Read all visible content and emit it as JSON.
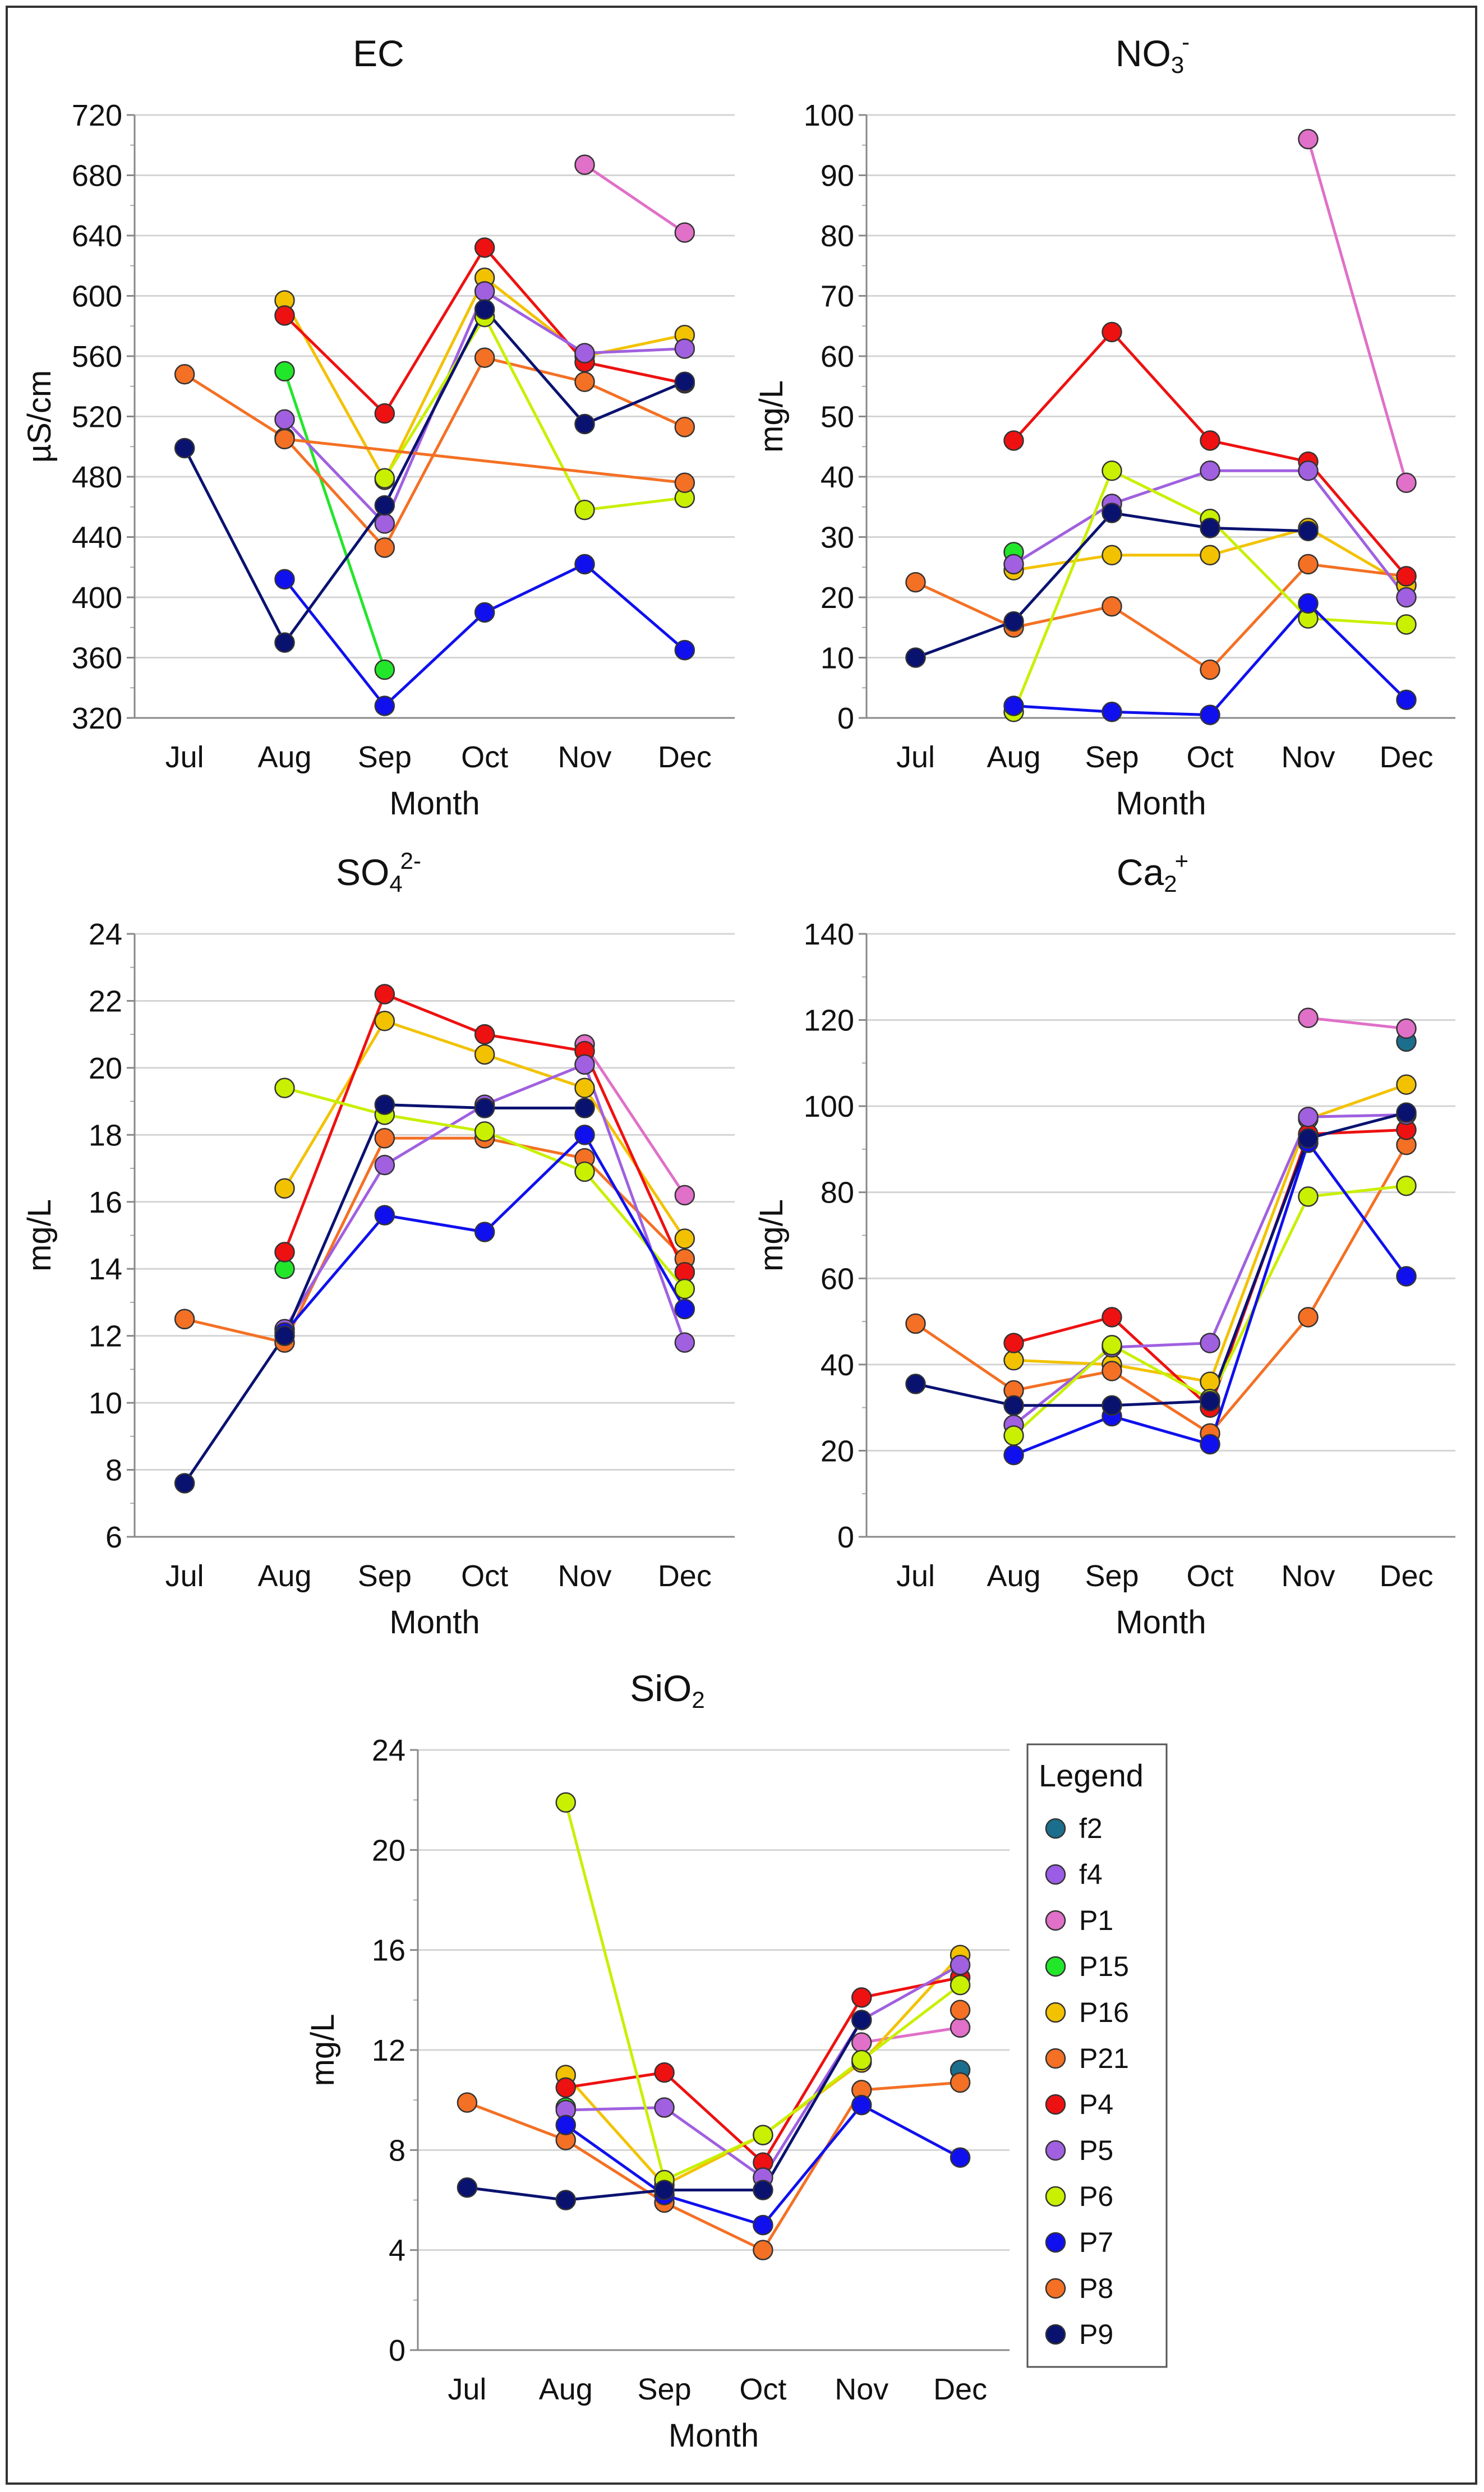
{
  "legend": {
    "title": "Legend",
    "items": [
      {
        "name": "f2",
        "color": "#1b6e8c"
      },
      {
        "name": "f4",
        "color": "#9b5de5"
      },
      {
        "name": "P1",
        "color": "#e070c8"
      },
      {
        "name": "P15",
        "color": "#22e62a"
      },
      {
        "name": "P16",
        "color": "#f2c200"
      },
      {
        "name": "P21",
        "color": "#f47024"
      },
      {
        "name": "P4",
        "color": "#ee1111"
      },
      {
        "name": "P5",
        "color": "#a060e0"
      },
      {
        "name": "P6",
        "color": "#c8f000"
      },
      {
        "name": "P7",
        "color": "#1010ee"
      },
      {
        "name": "P8",
        "color": "#f47024"
      },
      {
        "name": "P9",
        "color": "#0a1270"
      }
    ]
  },
  "line_colors": {
    "f2": "#1b6e8c",
    "f4": "#9b5de5",
    "P1": "#e070c8",
    "P15": "#22e62a",
    "P16": "#f2c200",
    "P21": "#f47024",
    "P4": "#ee1111",
    "P5": "#a060e0",
    "P6": "#c8f000",
    "P7": "#1010ee",
    "P8": "#f47024",
    "P9": "#0a1270"
  },
  "chart_data": [
    {
      "id": "ec",
      "type": "line",
      "title": "EC",
      "title_sup": "",
      "title_sub": "",
      "xlabel": "Month",
      "ylabel": "µS/cm",
      "categories": [
        "Jul",
        "Aug",
        "Sep",
        "Oct",
        "Nov",
        "Dec"
      ],
      "ylim": [
        320,
        720
      ],
      "yticks": [
        320,
        360,
        400,
        440,
        480,
        520,
        560,
        600,
        640,
        680,
        720
      ],
      "series": [
        {
          "name": "P1",
          "values": [
            null,
            null,
            null,
            null,
            687,
            642
          ]
        },
        {
          "name": "P15",
          "values": [
            null,
            550,
            352,
            null,
            null,
            null
          ]
        },
        {
          "name": "P16",
          "values": [
            null,
            597,
            478,
            612,
            560,
            574
          ]
        },
        {
          "name": "P21",
          "values": [
            548,
            506,
            433,
            559,
            543,
            513
          ]
        },
        {
          "name": "P4",
          "values": [
            null,
            587,
            522,
            632,
            556,
            542
          ]
        },
        {
          "name": "P5",
          "values": [
            null,
            518,
            449,
            603,
            562,
            565
          ]
        },
        {
          "name": "P6",
          "values": [
            null,
            null,
            479,
            586,
            458,
            466
          ]
        },
        {
          "name": "P7",
          "values": [
            null,
            412,
            328,
            390,
            422,
            365
          ]
        },
        {
          "name": "P8",
          "values": [
            null,
            505,
            null,
            null,
            null,
            476
          ]
        },
        {
          "name": "P9",
          "values": [
            499,
            370,
            461,
            591,
            515,
            543
          ]
        }
      ]
    },
    {
      "id": "no3",
      "type": "line",
      "title": "NO",
      "title_sup": "-",
      "title_sub": "3",
      "xlabel": "Month",
      "ylabel": "mg/L",
      "categories": [
        "Jul",
        "Aug",
        "Sep",
        "Oct",
        "Nov",
        "Dec"
      ],
      "ylim": [
        0,
        100
      ],
      "yticks": [
        0,
        10,
        20,
        30,
        40,
        50,
        60,
        70,
        80,
        90,
        100
      ],
      "series": [
        {
          "name": "f2",
          "values": [
            null,
            null,
            null,
            null,
            null,
            22
          ]
        },
        {
          "name": "P1",
          "values": [
            null,
            null,
            null,
            null,
            96,
            39
          ]
        },
        {
          "name": "P15",
          "values": [
            null,
            27.5,
            null,
            null,
            null,
            null
          ]
        },
        {
          "name": "P16",
          "values": [
            null,
            24.5,
            27,
            27,
            31.5,
            22
          ]
        },
        {
          "name": "P21",
          "values": [
            22.5,
            15,
            18.5,
            8,
            25.5,
            23.5
          ]
        },
        {
          "name": "P4",
          "values": [
            null,
            46,
            64,
            46,
            42.5,
            23.5
          ]
        },
        {
          "name": "P5",
          "values": [
            null,
            25.5,
            35.5,
            41,
            41,
            20
          ]
        },
        {
          "name": "P6",
          "values": [
            null,
            1,
            41,
            33,
            16.5,
            15.5
          ]
        },
        {
          "name": "P7",
          "values": [
            null,
            2,
            1,
            0.5,
            19,
            3
          ]
        },
        {
          "name": "P9",
          "values": [
            10,
            16,
            34,
            31.5,
            31,
            null
          ]
        }
      ]
    },
    {
      "id": "so4",
      "type": "line",
      "title": "SO",
      "title_sup": "2-",
      "title_sub": "4",
      "xlabel": "Month",
      "ylabel": "mg/L",
      "categories": [
        "Jul",
        "Aug",
        "Sep",
        "Oct",
        "Nov",
        "Dec"
      ],
      "ylim": [
        6,
        24
      ],
      "yticks": [
        6,
        8,
        10,
        12,
        14,
        16,
        18,
        20,
        22,
        24
      ],
      "series": [
        {
          "name": "P1",
          "values": [
            null,
            null,
            null,
            null,
            20.7,
            16.2
          ]
        },
        {
          "name": "P15",
          "values": [
            null,
            14,
            null,
            null,
            null,
            null
          ]
        },
        {
          "name": "P16",
          "values": [
            null,
            16.4,
            21.4,
            20.4,
            19.4,
            14.9
          ]
        },
        {
          "name": "P21",
          "values": [
            12.5,
            11.8,
            17.9,
            17.9,
            17.3,
            14.3
          ]
        },
        {
          "name": "P4",
          "values": [
            null,
            14.5,
            22.2,
            21,
            20.5,
            13.9
          ]
        },
        {
          "name": "P5",
          "values": [
            null,
            12.2,
            17.1,
            18.9,
            20.1,
            11.8
          ]
        },
        {
          "name": "P6",
          "values": [
            null,
            19.4,
            18.6,
            18.1,
            16.9,
            13.4
          ]
        },
        {
          "name": "P7",
          "values": [
            null,
            12.1,
            15.6,
            15.1,
            18,
            12.8
          ]
        },
        {
          "name": "P9",
          "values": [
            7.6,
            12,
            18.9,
            18.8,
            18.8,
            null
          ]
        }
      ]
    },
    {
      "id": "ca",
      "type": "line",
      "title": "Ca",
      "title_sup": "+",
      "title_sub": "2",
      "xlabel": "Month",
      "ylabel": "mg/L",
      "categories": [
        "Jul",
        "Aug",
        "Sep",
        "Oct",
        "Nov",
        "Dec"
      ],
      "ylim": [
        0,
        140
      ],
      "yticks": [
        0,
        20,
        40,
        60,
        80,
        100,
        120,
        140
      ],
      "series": [
        {
          "name": "f2",
          "values": [
            null,
            null,
            null,
            null,
            null,
            115
          ]
        },
        {
          "name": "P1",
          "values": [
            null,
            null,
            null,
            null,
            120.5,
            118
          ]
        },
        {
          "name": "P16",
          "values": [
            null,
            41,
            40,
            36,
            97,
            105
          ]
        },
        {
          "name": "P21",
          "values": [
            49.5,
            34,
            38.5,
            24,
            51,
            91
          ]
        },
        {
          "name": "P4",
          "values": [
            null,
            45,
            51,
            30,
            93.5,
            94.5
          ]
        },
        {
          "name": "P5",
          "values": [
            null,
            26,
            44,
            45,
            97.5,
            98
          ]
        },
        {
          "name": "P6",
          "values": [
            null,
            23.5,
            44.5,
            32,
            79,
            81.5
          ]
        },
        {
          "name": "P7",
          "values": [
            null,
            19,
            28,
            21.5,
            91.5,
            60.5
          ]
        },
        {
          "name": "P9",
          "values": [
            35.5,
            30.5,
            30.5,
            31.5,
            92.5,
            98.5
          ]
        }
      ]
    },
    {
      "id": "sio2",
      "type": "line",
      "title": "SiO",
      "title_sup": "",
      "title_sub": "2",
      "xlabel": "Month",
      "ylabel": "mg/L",
      "categories": [
        "Jul",
        "Aug",
        "Sep",
        "Oct",
        "Nov",
        "Dec"
      ],
      "ylim": [
        0,
        24
      ],
      "yticks": [
        0,
        4,
        8,
        12,
        16,
        20,
        24
      ],
      "series": [
        {
          "name": "f2",
          "values": [
            null,
            null,
            null,
            null,
            null,
            11.2
          ]
        },
        {
          "name": "P1",
          "values": [
            null,
            null,
            null,
            null,
            12.3,
            12.9
          ]
        },
        {
          "name": "P15",
          "values": [
            null,
            9.7,
            null,
            null,
            null,
            null
          ]
        },
        {
          "name": "P16",
          "values": [
            null,
            11,
            6.6,
            8.6,
            11.5,
            15.8
          ]
        },
        {
          "name": "P21",
          "values": [
            9.9,
            8.4,
            5.9,
            4,
            10.4,
            10.7
          ]
        },
        {
          "name": "P4",
          "values": [
            null,
            10.5,
            11.1,
            7.5,
            14.1,
            14.9
          ]
        },
        {
          "name": "P5",
          "values": [
            null,
            9.6,
            9.7,
            6.9,
            13.2,
            15.4
          ]
        },
        {
          "name": "P6",
          "values": [
            null,
            21.9,
            6.8,
            8.6,
            11.6,
            14.6
          ]
        },
        {
          "name": "P7",
          "values": [
            null,
            9,
            6.2,
            5,
            9.8,
            7.7
          ]
        },
        {
          "name": "P8",
          "values": [
            null,
            null,
            null,
            null,
            null,
            13.6
          ]
        },
        {
          "name": "P9",
          "values": [
            6.5,
            6,
            6.4,
            6.4,
            13.2,
            null
          ]
        }
      ]
    }
  ]
}
